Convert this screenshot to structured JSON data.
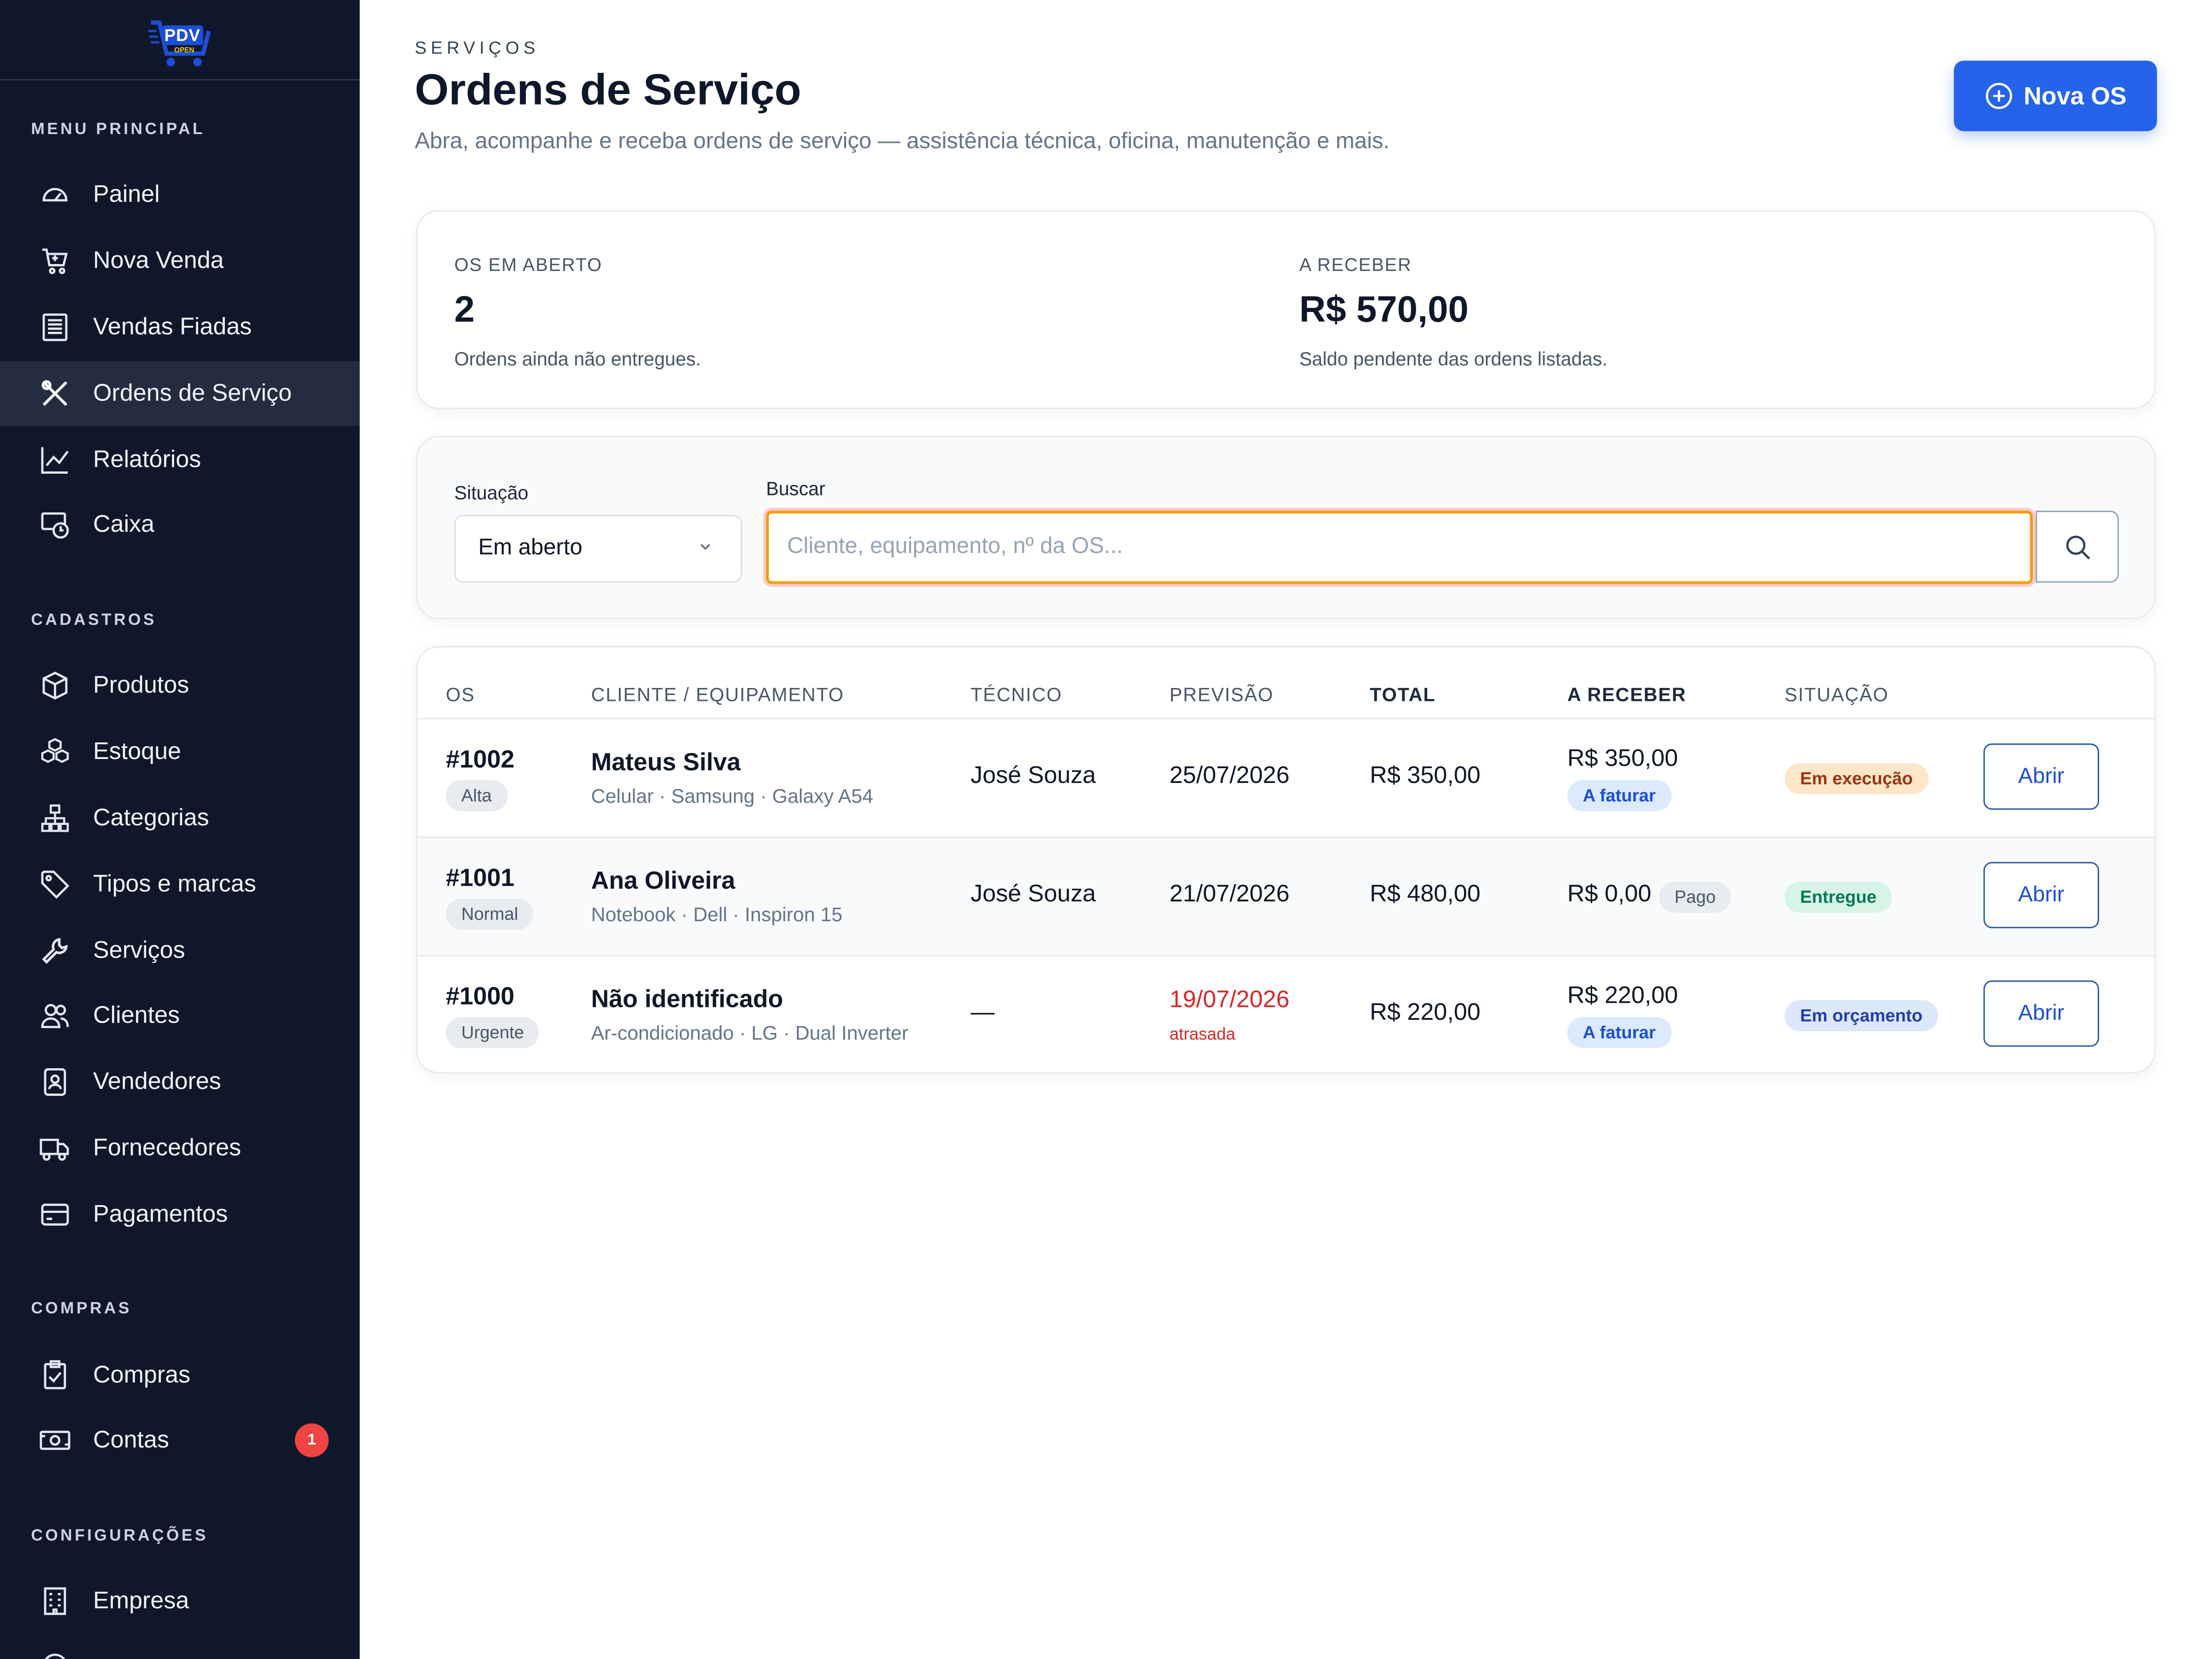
{
  "sidebar": {
    "logo": {
      "text": "PDV",
      "sub": "OPEN"
    },
    "sections": {
      "main": "MENU PRINCIPAL",
      "cadastros": "CADASTROS",
      "compras": "COMPRAS",
      "config": "CONFIGURAÇÕES"
    },
    "items": [
      {
        "label": "Painel",
        "icon": "gauge-icon"
      },
      {
        "label": "Nova Venda",
        "icon": "cart-icon"
      },
      {
        "label": "Vendas Fiadas",
        "icon": "ledger-icon"
      },
      {
        "label": "Ordens de Serviço",
        "icon": "tools-icon",
        "active": true
      },
      {
        "label": "Relatórios",
        "icon": "chart-line-icon"
      },
      {
        "label": "Caixa",
        "icon": "cash-register-icon"
      },
      {
        "label": "Produtos",
        "icon": "box-icon"
      },
      {
        "label": "Estoque",
        "icon": "boxes-icon"
      },
      {
        "label": "Categorias",
        "icon": "hierarchy-icon"
      },
      {
        "label": "Tipos e marcas",
        "icon": "tag-icon"
      },
      {
        "label": "Serviços",
        "icon": "wrench-icon"
      },
      {
        "label": "Clientes",
        "icon": "users-icon"
      },
      {
        "label": "Vendedores",
        "icon": "badge-person-icon"
      },
      {
        "label": "Fornecedores",
        "icon": "truck-icon"
      },
      {
        "label": "Pagamentos",
        "icon": "credit-card-icon"
      },
      {
        "label": "Compras",
        "icon": "clipboard-icon"
      },
      {
        "label": "Contas",
        "icon": "bill-icon",
        "badge": "1"
      },
      {
        "label": "Empresa",
        "icon": "building-icon"
      }
    ]
  },
  "header": {
    "eyebrow": "SERVIÇOS",
    "title": "Ordens de Serviço",
    "subtitle": "Abra, acompanhe e receba ordens de serviço — assistência técnica, oficina, manutenção e mais.",
    "new_button": "Nova OS"
  },
  "stats": {
    "open": {
      "label": "OS EM ABERTO",
      "value": "2",
      "note": "Ordens ainda não entregues."
    },
    "receivable": {
      "label": "A RECEBER",
      "value": "R$ 570,00",
      "note": "Saldo pendente das ordens listadas."
    }
  },
  "filters": {
    "status_label": "Situação",
    "status_value": "Em aberto",
    "search_label": "Buscar",
    "search_placeholder": "Cliente, equipamento, nº da OS..."
  },
  "table": {
    "headers": [
      "OS",
      "CLIENTE / EQUIPAMENTO",
      "TÉCNICO",
      "PREVISÃO",
      "TOTAL",
      "A RECEBER",
      "SITUAÇÃO"
    ],
    "rows": [
      {
        "os": "#1002",
        "priority": "Alta",
        "client": "Mateus Silva",
        "equipment": "Celular · Samsung · Galaxy A54",
        "tech": "José Souza",
        "due": "25/07/2026",
        "due_note": "",
        "total": "R$ 350,00",
        "receivable": "R$ 350,00",
        "receivable_tag": "A faturar",
        "status": "Em execução",
        "action": "Abrir"
      },
      {
        "os": "#1001",
        "priority": "Normal",
        "client": "Ana Oliveira",
        "equipment": "Notebook · Dell · Inspiron 15",
        "tech": "José Souza",
        "due": "21/07/2026",
        "due_note": "",
        "total": "R$ 480,00",
        "receivable": "R$ 0,00",
        "receivable_tag": "Pago",
        "status": "Entregue",
        "action": "Abrir"
      },
      {
        "os": "#1000",
        "priority": "Urgente",
        "client": "Não identificado",
        "equipment": "Ar-condicionado · LG · Dual Inverter",
        "tech": "—",
        "due": "19/07/2026",
        "due_note": "atrasada",
        "total": "R$ 220,00",
        "receivable": "R$ 220,00",
        "receivable_tag": "A faturar",
        "status": "Em orçamento",
        "action": "Abrir"
      }
    ]
  },
  "colors": {
    "sidebar_bg": "#0f172a",
    "accent": "#2563eb",
    "danger": "#dc2626"
  }
}
